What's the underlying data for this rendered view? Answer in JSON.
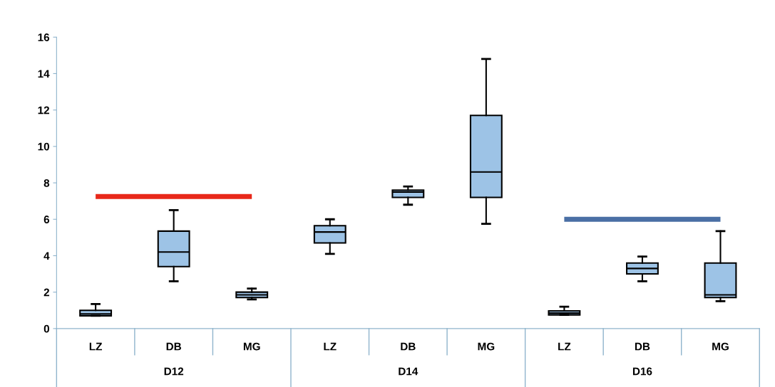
{
  "chart_data": {
    "type": "box",
    "categories": [
      "LZ",
      "DB",
      "MG",
      "LZ",
      "DB",
      "MG",
      "LZ",
      "DB",
      "MG"
    ],
    "annotations": [
      "D12",
      "D14",
      "D16"
    ],
    "ylim": [
      0,
      16
    ],
    "yticks": [
      0,
      2,
      4,
      6,
      8,
      10,
      12,
      14,
      16
    ],
    "grid": false,
    "series": [
      {
        "color": "#9dc3e6",
        "boxes": [
          {
            "low": 0.7,
            "q1": 0.7,
            "median": 0.8,
            "q3": 1.0,
            "high": 1.35
          },
          {
            "low": 2.6,
            "q1": 3.4,
            "median": 4.2,
            "q3": 5.35,
            "high": 6.5
          },
          {
            "low": 1.6,
            "q1": 1.7,
            "median": 1.85,
            "q3": 2.0,
            "high": 2.2
          },
          {
            "low": 4.1,
            "q1": 4.7,
            "median": 5.3,
            "q3": 5.65,
            "high": 6.0
          },
          {
            "low": 6.8,
            "q1": 7.2,
            "median": 7.5,
            "q3": 7.6,
            "high": 7.8
          },
          {
            "low": 5.75,
            "q1": 7.2,
            "median": 8.6,
            "q3": 11.7,
            "high": 14.8
          },
          {
            "low": 0.75,
            "q1": 0.75,
            "median": 0.85,
            "q3": 0.97,
            "high": 1.2
          },
          {
            "low": 2.6,
            "q1": 3.0,
            "median": 3.3,
            "q3": 3.6,
            "high": 3.95
          },
          {
            "low": 1.5,
            "q1": 1.7,
            "median": 1.85,
            "q3": 3.6,
            "high": 5.35
          }
        ]
      },
      {
        "type": "line",
        "color": "#e8281a",
        "values": [
          7.25,
          7.25,
          7.25,
          null,
          null,
          null,
          null,
          null,
          null
        ]
      },
      {
        "type": "line",
        "color": "#4a6fa5",
        "values": [
          null,
          null,
          null,
          null,
          null,
          null,
          6.0,
          6.0,
          6.0
        ]
      }
    ]
  }
}
